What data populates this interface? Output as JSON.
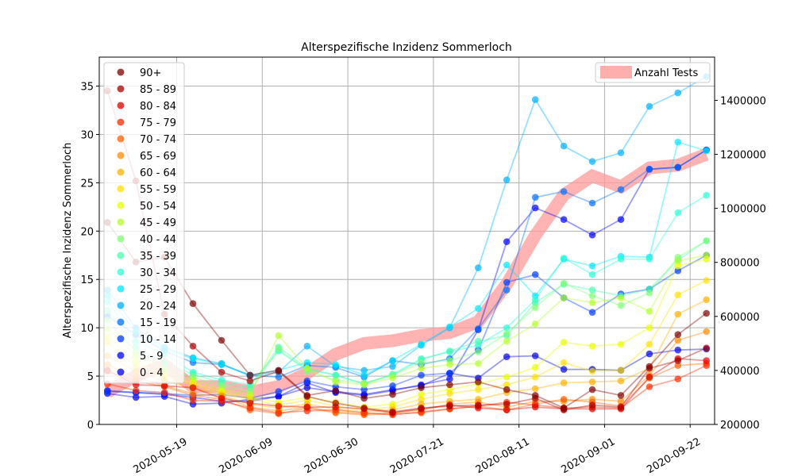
{
  "chart_data": {
    "type": "line",
    "title": "Alterspezifische Inzidenz Sommerloch",
    "ylabel": "Alterspezifische Inzidenz Sommerloch",
    "xlabel": "",
    "x_range": [
      "2020-04-30",
      "2020-09-28"
    ],
    "ylim": [
      0,
      38
    ],
    "y_ticks": [
      0,
      5,
      10,
      15,
      20,
      25,
      30,
      35
    ],
    "y2lim": [
      200000,
      1560000
    ],
    "y2_ticks": [
      200000,
      400000,
      600000,
      800000,
      1000000,
      1200000,
      1400000
    ],
    "x_ticks": [
      "2020-05-19",
      "2020-06-09",
      "2020-06-30",
      "2020-07-21",
      "2020-08-11",
      "2020-09-01",
      "2020-09-22"
    ],
    "grid": true,
    "legend_position": "upper-left",
    "legend2_position": "upper-right",
    "x": [
      "2020-05-02",
      "2020-05-09",
      "2020-05-16",
      "2020-05-23",
      "2020-05-30",
      "2020-06-06",
      "2020-06-13",
      "2020-06-20",
      "2020-06-27",
      "2020-07-04",
      "2020-07-11",
      "2020-07-18",
      "2020-07-25",
      "2020-08-01",
      "2020-08-08",
      "2020-08-15",
      "2020-08-22",
      "2020-08-29",
      "2020-09-05",
      "2020-09-12",
      "2020-09-19",
      "2020-09-26"
    ],
    "series": [
      {
        "name": "90+",
        "color": "#7f0000",
        "values": [
          20.9,
          16.8,
          17.3,
          12.5,
          8.7,
          5.1,
          5.6,
          3.0,
          3.5,
          2.7,
          3.1,
          3.8,
          4.1,
          4.4,
          3.6,
          3.0,
          1.7,
          3.6,
          3.0,
          6.0,
          9.3,
          11.5
        ]
      },
      {
        "name": "85 - 89",
        "color": "#a50000",
        "values": [
          34.5,
          25.2,
          11.4,
          8.1,
          5.4,
          4.5,
          5.5,
          2.9,
          2.2,
          1.7,
          1.3,
          1.7,
          1.9,
          2.0,
          2.1,
          2.7,
          1.5,
          2.0,
          1.8,
          5.8,
          6.6,
          7.9
        ]
      },
      {
        "name": "80 - 84",
        "color": "#db0000",
        "values": [
          5.6,
          4.1,
          4.0,
          3.8,
          2.7,
          2.2,
          1.9,
          1.8,
          1.8,
          1.6,
          1.2,
          1.6,
          2.0,
          1.7,
          1.5,
          1.8,
          1.6,
          1.6,
          1.6,
          4.9,
          6.8,
          6.6
        ]
      },
      {
        "name": "75 - 79",
        "color": "#ff2a00",
        "values": [
          4.2,
          3.5,
          3.3,
          2.5,
          2.4,
          1.7,
          1.2,
          1.4,
          1.5,
          1.2,
          1.0,
          1.3,
          1.6,
          1.9,
          2.3,
          2.0,
          1.7,
          1.8,
          1.7,
          3.9,
          4.7,
          6.1
        ]
      },
      {
        "name": "70 - 74",
        "color": "#ff5e00",
        "values": [
          5.5,
          4.5,
          3.9,
          3.0,
          2.6,
          1.5,
          1.1,
          1.7,
          1.2,
          1.0,
          1.1,
          1.2,
          1.6,
          1.9,
          1.5,
          2.1,
          2.6,
          2.3,
          1.9,
          4.8,
          6.1,
          6.3
        ]
      },
      {
        "name": "65 - 69",
        "color": "#ff8c00",
        "values": [
          6.2,
          4.9,
          4.0,
          3.2,
          2.9,
          1.8,
          1.4,
          1.8,
          1.3,
          1.1,
          1.2,
          1.5,
          2.1,
          2.3,
          1.8,
          2.4,
          2.4,
          2.6,
          2.4,
          5.1,
          8.7,
          9.6
        ]
      },
      {
        "name": "60 - 64",
        "color": "#ffb000",
        "values": [
          7.1,
          5.5,
          4.5,
          3.8,
          3.0,
          2.1,
          1.7,
          2.1,
          1.6,
          1.3,
          1.5,
          2.1,
          2.4,
          2.6,
          3.3,
          3.7,
          4.3,
          4.4,
          4.5,
          5.8,
          11.4,
          12.9
        ]
      },
      {
        "name": "55 - 59",
        "color": "#ffe000",
        "values": [
          8.5,
          6.0,
          4.8,
          4.1,
          3.2,
          2.6,
          2.0,
          2.5,
          1.9,
          1.5,
          1.8,
          2.6,
          3.2,
          3.6,
          4.1,
          4.9,
          6.4,
          5.5,
          5.6,
          8.3,
          13.4,
          14.9
        ]
      },
      {
        "name": "50 - 54",
        "color": "#e8ff00",
        "values": [
          9.1,
          6.5,
          5.1,
          4.3,
          3.4,
          2.8,
          2.3,
          2.8,
          2.3,
          1.8,
          2.1,
          3.1,
          3.6,
          4.2,
          4.9,
          5.9,
          8.5,
          8.1,
          8.3,
          10.0,
          16.4,
          17.1
        ]
      },
      {
        "name": "45 - 49",
        "color": "#b4ff2a",
        "values": [
          9.9,
          7.1,
          5.5,
          4.6,
          3.6,
          3.1,
          9.2,
          5.8,
          4.4,
          4.1,
          4.8,
          5.8,
          6.2,
          6.3,
          8.6,
          10.4,
          13.1,
          12.6,
          13.1,
          11.7,
          16.9,
          17.5
        ]
      },
      {
        "name": "40 - 44",
        "color": "#7fff74",
        "values": [
          10.8,
          7.5,
          5.8,
          4.9,
          4.0,
          3.4,
          7.8,
          5.5,
          4.6,
          4.3,
          5.1,
          6.4,
          6.6,
          7.5,
          9.4,
          12.1,
          14.6,
          13.3,
          12.3,
          13.6,
          17.3,
          19.0
        ]
      },
      {
        "name": "35 - 39",
        "color": "#46ffb1",
        "values": [
          11.8,
          8.0,
          6.4,
          5.2,
          4.3,
          3.8,
          8.0,
          5.8,
          5.1,
          4.2,
          5.1,
          6.7,
          7.6,
          8.6,
          9.2,
          12.6,
          14.5,
          13.9,
          13.3,
          14.0,
          17.0,
          19.0
        ]
      },
      {
        "name": "30 - 34",
        "color": "#2affd4",
        "values": [
          12.7,
          8.6,
          7.3,
          5.4,
          4.6,
          4.1,
          7.6,
          5.7,
          5.1,
          4.2,
          5.2,
          6.8,
          7.5,
          8.2,
          10.0,
          12.9,
          17.2,
          15.5,
          17.1,
          17.1,
          21.9,
          23.7
        ]
      },
      {
        "name": "25 - 29",
        "color": "#00e5ff",
        "values": [
          13.3,
          9.6,
          7.8,
          6.8,
          6.2,
          5.1,
          5.6,
          6.4,
          6.2,
          5.1,
          6.6,
          8.3,
          10.1,
          12.0,
          16.5,
          13.3,
          17.1,
          16.4,
          17.4,
          17.3,
          29.2,
          28.3
        ]
      },
      {
        "name": "20 - 24",
        "color": "#00b0ff",
        "values": [
          13.9,
          10.0,
          8.0,
          6.9,
          6.3,
          5.0,
          5.4,
          8.1,
          6.0,
          5.6,
          6.0,
          8.2,
          10.0,
          16.2,
          25.3,
          33.6,
          28.8,
          27.2,
          28.1,
          32.9,
          34.3,
          36.0
        ]
      },
      {
        "name": "15 - 19",
        "color": "#0070ff",
        "values": [
          11.2,
          9.3,
          7.6,
          6.4,
          6.2,
          5.1,
          4.9,
          6.1,
          5.9,
          4.9,
          6.6,
          6.2,
          6.8,
          9.9,
          13.9,
          23.5,
          24.1,
          22.9,
          24.3,
          26.4,
          26.6,
          28.4
        ]
      },
      {
        "name": "10 - 14",
        "color": "#003cff",
        "values": [
          3.4,
          3.3,
          3.2,
          3.0,
          3.1,
          2.7,
          3.4,
          4.5,
          3.9,
          3.6,
          4.0,
          5.1,
          5.3,
          7.7,
          14.7,
          15.5,
          13.1,
          11.6,
          13.5,
          14.0,
          15.9,
          17.5
        ]
      },
      {
        "name": "5 - 9",
        "color": "#0000ff",
        "values": [
          3.5,
          3.3,
          3.1,
          2.8,
          2.4,
          2.4,
          2.9,
          4.3,
          3.3,
          3.0,
          3.5,
          4.1,
          4.7,
          9.8,
          18.9,
          22.4,
          21.2,
          19.6,
          21.2,
          26.4,
          26.6,
          28.4
        ]
      },
      {
        "name": "0 - 4",
        "color": "#0000e0",
        "values": [
          3.2,
          2.8,
          2.9,
          2.1,
          2.2,
          2.6,
          2.9,
          3.8,
          3.4,
          3.1,
          3.6,
          4.0,
          5.3,
          4.8,
          7.0,
          7.1,
          5.7,
          5.7,
          5.6,
          7.3,
          7.7,
          7.8
        ]
      }
    ],
    "secondary_series": {
      "name": "Anzahl Tests",
      "color": "#ff9a9a",
      "values": [
        320000,
        380000,
        420000,
        340000,
        340000,
        320000,
        340000,
        390000,
        460000,
        500000,
        510000,
        530000,
        540000,
        580000,
        720000,
        900000,
        1050000,
        1120000,
        1080000,
        1150000,
        1160000,
        1200000
      ]
    }
  }
}
